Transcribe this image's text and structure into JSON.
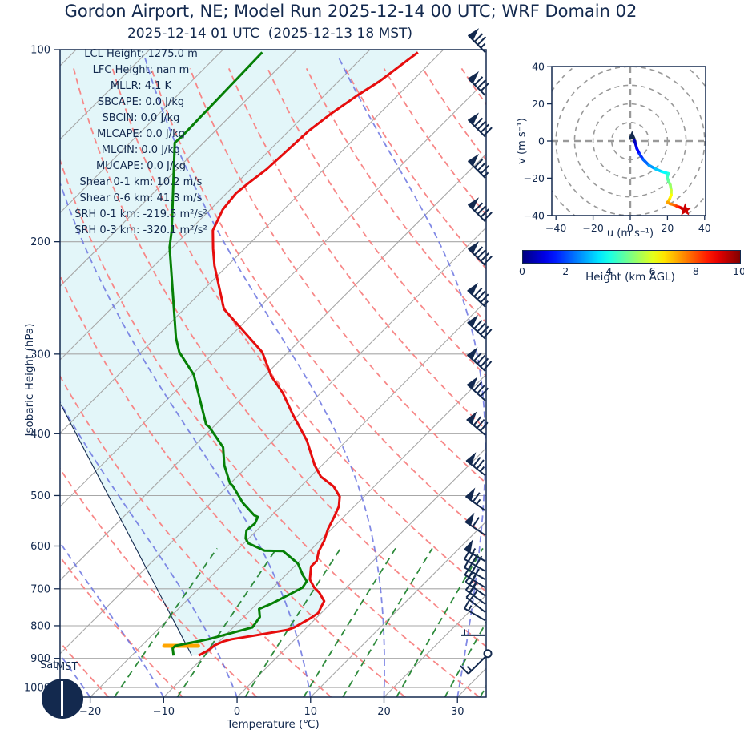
{
  "header": {
    "title": "Gordon Airport, NE; Model Run 2025-12-14 00 UTC; WRF Domain 02",
    "subtitle": "2025-12-14 01 UTC  (2025-12-13 18 MST)"
  },
  "skewt": {
    "ylabel": "Isobaric Height (hPa)",
    "xlabel": "Temperature (℃)",
    "annotations": [
      "LCL Height: 1275.0 m",
      "LFC Height: nan m",
      "MLLR: 4.1 K",
      "SBCAPE: 0.0 J/kg",
      "SBCIN: 0.0 J/kg",
      "MLCAPE: 0.0 J/kg",
      "MLCIN: 0.0 J/kg",
      "MUCAPE: 0.0 J/kg",
      "Shear 0-1 km: 10.2 m/s",
      "Shear 0-6 km: 41.3 m/s",
      "SRH 0-1 km: -219.5 m²/s²",
      "SRH 0-3 km: -320.1 m²/s²"
    ],
    "corner": {
      "day": "Sat",
      "tz": "MST"
    }
  },
  "hodograph": {
    "xlabel": "u (m s⁻¹)",
    "ylabel": "v (m s⁻¹)"
  },
  "colorbar": {
    "label": "Height (km AGL)",
    "ticks": [
      0,
      2,
      4,
      6,
      8,
      10
    ],
    "colormap": "jet"
  },
  "colors": {
    "navy": "#13294e",
    "temperature": "#e60d0d",
    "dewpoint": "#068006",
    "dry_adiabat": "#f78787",
    "moist_adiabat": "#6b74e0",
    "mixing_ratio": "#2e8b3c",
    "gridline": "#a7a7a7",
    "shade": "#e3f6f9",
    "lcl_marker": "#ffa500",
    "star": "#cc0000"
  },
  "chart_data": [
    {
      "type": "line",
      "name": "skewt-sounding",
      "xlabel": "Temperature (℃)",
      "ylabel": "Isobaric Height (hPa)",
      "x_ticks": [
        -20,
        -10,
        0,
        10,
        20,
        30
      ],
      "t_range_bottom": [
        -24.1,
        33.9
      ],
      "skew_deg": 45,
      "y_scale": "log",
      "p_ticks": [
        100,
        200,
        300,
        400,
        500,
        600,
        700,
        800,
        900,
        1000
      ],
      "p_range": [
        100,
        1035
      ],
      "isotherms": [
        -110,
        -100,
        -90,
        -80,
        -70,
        -60,
        -50,
        -40,
        -30,
        -20,
        -10,
        0,
        10,
        20,
        30
      ],
      "dry_adiabats_theta_c": [
        -30,
        -20,
        -10,
        0,
        10,
        20,
        30,
        40,
        50,
        60,
        70,
        80,
        90,
        100,
        110,
        120,
        130,
        140,
        150
      ],
      "moist_adiabats_t0_c": [
        -60,
        -50,
        -40,
        -30,
        -20,
        -10,
        0,
        10,
        20,
        30,
        40
      ],
      "mixing_ratio_g_kg": [
        1,
        2,
        4,
        7,
        10,
        16,
        24,
        32,
        40
      ],
      "mixing_ratio_top_hpa": 600,
      "series": [
        {
          "name": "temperature",
          "units": [
            "hPa",
            "degC"
          ],
          "points": [
            [
              891,
              -10.9
            ],
            [
              875,
              -10.3
            ],
            [
              858,
              -10.1
            ],
            [
              846,
              -9.4
            ],
            [
              840,
              -8.6
            ],
            [
              828,
              -5.8
            ],
            [
              812,
              -2.3
            ],
            [
              805,
              -1.7
            ],
            [
              780,
              -0.8
            ],
            [
              764,
              -0.4
            ],
            [
              745,
              -0.9
            ],
            [
              732,
              -1.2
            ],
            [
              710,
              -3.0
            ],
            [
              697,
              -4.4
            ],
            [
              677,
              -6.1
            ],
            [
              646,
              -7.7
            ],
            [
              633,
              -7.7
            ],
            [
              612,
              -8.7
            ],
            [
              589,
              -9.4
            ],
            [
              564,
              -10.5
            ],
            [
              540,
              -11.3
            ],
            [
              520,
              -12.1
            ],
            [
              502,
              -13.3
            ],
            [
              484,
              -15.5
            ],
            [
              467,
              -18.6
            ],
            [
              448,
              -21.0
            ],
            [
              410,
              -25.4
            ],
            [
              373,
              -30.9
            ],
            [
              345,
              -35.2
            ],
            [
              325,
              -39.0
            ],
            [
              298,
              -43.5
            ],
            [
              255,
              -54.6
            ],
            [
              218,
              -61.8
            ],
            [
              205,
              -64.3
            ],
            [
              192,
              -66.8
            ],
            [
              178,
              -68.3
            ],
            [
              168,
              -68.7
            ],
            [
              162,
              -68.4
            ],
            [
              154,
              -67.8
            ],
            [
              146,
              -67.6
            ],
            [
              134,
              -67.3
            ],
            [
              126,
              -66.6
            ],
            [
              118,
              -65.5
            ],
            [
              112,
              -64.4
            ],
            [
              101,
              -63.1
            ]
          ]
        },
        {
          "name": "dewpoint",
          "units": [
            "hPa",
            "degC"
          ],
          "points": [
            [
              891,
              -14.3
            ],
            [
              868,
              -15.4
            ],
            [
              860,
              -15.4
            ],
            [
              854,
              -14.3
            ],
            [
              840,
              -11.8
            ],
            [
              805,
              -7.4
            ],
            [
              775,
              -7.8
            ],
            [
              753,
              -9.0
            ],
            [
              738,
              -8.0
            ],
            [
              714,
              -6.8
            ],
            [
              697,
              -6.0
            ],
            [
              681,
              -6.3
            ],
            [
              667,
              -7.6
            ],
            [
              639,
              -9.9
            ],
            [
              611,
              -13.6
            ],
            [
              610,
              -16.2
            ],
            [
              594,
              -19.4
            ],
            [
              584,
              -20.4
            ],
            [
              567,
              -21.4
            ],
            [
              553,
              -21.2
            ],
            [
              540,
              -21.7
            ],
            [
              537,
              -22.4
            ],
            [
              513,
              -25.7
            ],
            [
              483,
              -29.3
            ],
            [
              478,
              -30.1
            ],
            [
              448,
              -33.3
            ],
            [
              420,
              -35.9
            ],
            [
              390,
              -40.6
            ],
            [
              387,
              -41.3
            ],
            [
              323,
              -49.8
            ],
            [
              298,
              -54.8
            ],
            [
              283,
              -57.2
            ],
            [
              204,
              -70.4
            ],
            [
              192,
              -72.4
            ],
            [
              140,
              -83.9
            ],
            [
              137,
              -83.8
            ],
            [
              101,
              -84.3
            ]
          ]
        },
        {
          "name": "parcel",
          "units": [
            "hPa",
            "degC"
          ],
          "points": [
            [
              891,
              -11.8
            ],
            [
              360,
              -63.8
            ]
          ]
        }
      ],
      "lcl_marker": {
        "pressure": 860,
        "t_from": -16.9,
        "t_to": -12.3
      },
      "shade_between": [
        "parcel-and-left-edge",
        "temperature"
      ],
      "wind_barbs": [
        {
          "p": 101,
          "flags": 1,
          "fulls": 2,
          "halfs": 1,
          "dir": 315
        },
        {
          "p": 118,
          "flags": 1,
          "fulls": 3,
          "halfs": 0,
          "dir": 315
        },
        {
          "p": 137,
          "flags": 1,
          "fulls": 4,
          "halfs": 0,
          "dir": 315
        },
        {
          "p": 159,
          "flags": 1,
          "fulls": 3,
          "halfs": 1,
          "dir": 315
        },
        {
          "p": 186,
          "flags": 1,
          "fulls": 4,
          "halfs": 0,
          "dir": 315
        },
        {
          "p": 218,
          "flags": 1,
          "fulls": 4,
          "halfs": 0,
          "dir": 315
        },
        {
          "p": 253,
          "flags": 1,
          "fulls": 3,
          "halfs": 1,
          "dir": 313
        },
        {
          "p": 284,
          "flags": 1,
          "fulls": 4,
          "halfs": 0,
          "dir": 313
        },
        {
          "p": 319,
          "flags": 1,
          "fulls": 4,
          "halfs": 0,
          "dir": 312
        },
        {
          "p": 355,
          "flags": 1,
          "fulls": 3,
          "halfs": 0,
          "dir": 312
        },
        {
          "p": 402,
          "flags": 1,
          "fulls": 3,
          "halfs": 0,
          "dir": 310
        },
        {
          "p": 465,
          "flags": 1,
          "fulls": 2,
          "halfs": 1,
          "dir": 308
        },
        {
          "p": 528,
          "flags": 1,
          "fulls": 1,
          "halfs": 1,
          "dir": 306
        },
        {
          "p": 577,
          "flags": 1,
          "fulls": 1,
          "halfs": 0,
          "dir": 304
        },
        {
          "p": 634,
          "flags": 1,
          "fulls": 0,
          "halfs": 1,
          "dir": 300
        },
        {
          "p": 657,
          "flags": 0,
          "fulls": 4,
          "halfs": 0,
          "dir": 300
        },
        {
          "p": 677,
          "flags": 0,
          "fulls": 3,
          "halfs": 1,
          "dir": 300
        },
        {
          "p": 697,
          "flags": 0,
          "fulls": 3,
          "halfs": 0,
          "dir": 302
        },
        {
          "p": 718,
          "flags": 0,
          "fulls": 2,
          "halfs": 1,
          "dir": 305
        },
        {
          "p": 740,
          "flags": 0,
          "fulls": 2,
          "halfs": 0,
          "dir": 306
        },
        {
          "p": 762,
          "flags": 0,
          "fulls": 2,
          "halfs": 0,
          "dir": 308
        },
        {
          "p": 785,
          "flags": 0,
          "fulls": 1,
          "halfs": 1,
          "dir": 300
        },
        {
          "p": 828,
          "flags": 0,
          "fulls": 0,
          "halfs": 1,
          "dir": 270
        },
        {
          "p": 895,
          "flags": 0,
          "fulls": 1,
          "halfs": 1,
          "dir": 225,
          "circle": true
        }
      ]
    },
    {
      "type": "line",
      "name": "hodograph",
      "xlabel": "u (m s⁻¹)",
      "ylabel": "v (m s⁻¹)",
      "xlim": [
        -41.5,
        41.5
      ],
      "ylim": [
        -41.5,
        41.5
      ],
      "ticks": [
        -40,
        -20,
        0,
        20,
        40
      ],
      "ring_radii": [
        10,
        20,
        30,
        40,
        50,
        60
      ],
      "color_by": "height_km",
      "height_range_km": [
        0,
        10
      ],
      "trace": [
        [
          0.0,
          1.0,
          2.5
        ],
        [
          0.2,
          1.8,
          1.5
        ],
        [
          0.4,
          2.3,
          0.0
        ],
        [
          0.7,
          3.0,
          -2.0
        ],
        [
          1.0,
          3.5,
          -4.0
        ],
        [
          1.5,
          5.0,
          -7.0
        ],
        [
          2.0,
          7.0,
          -10.0
        ],
        [
          2.5,
          10.0,
          -13.0
        ],
        [
          3.0,
          13.5,
          -15.0
        ],
        [
          3.5,
          17.0,
          -16.5
        ],
        [
          4.0,
          20.5,
          -17.5
        ],
        [
          4.3,
          19.8,
          -19.5
        ],
        [
          4.6,
          20.5,
          -21.5
        ],
        [
          5.0,
          21.5,
          -23.5
        ],
        [
          5.5,
          22.0,
          -26.5
        ],
        [
          6.0,
          22.0,
          -29.0
        ],
        [
          6.5,
          21.0,
          -31.5
        ],
        [
          7.0,
          20.0,
          -33.0
        ],
        [
          7.3,
          21.5,
          -33.8
        ],
        [
          7.7,
          23.5,
          -34.3
        ],
        [
          8.0,
          25.0,
          -35.0
        ],
        [
          8.5,
          26.5,
          -35.6
        ],
        [
          9.0,
          27.5,
          -36.0
        ],
        [
          9.5,
          28.5,
          -36.6
        ],
        [
          10.0,
          29.5,
          -37.0
        ]
      ],
      "start_marker": "navy-arrow",
      "end_marker": "red-star"
    }
  ]
}
